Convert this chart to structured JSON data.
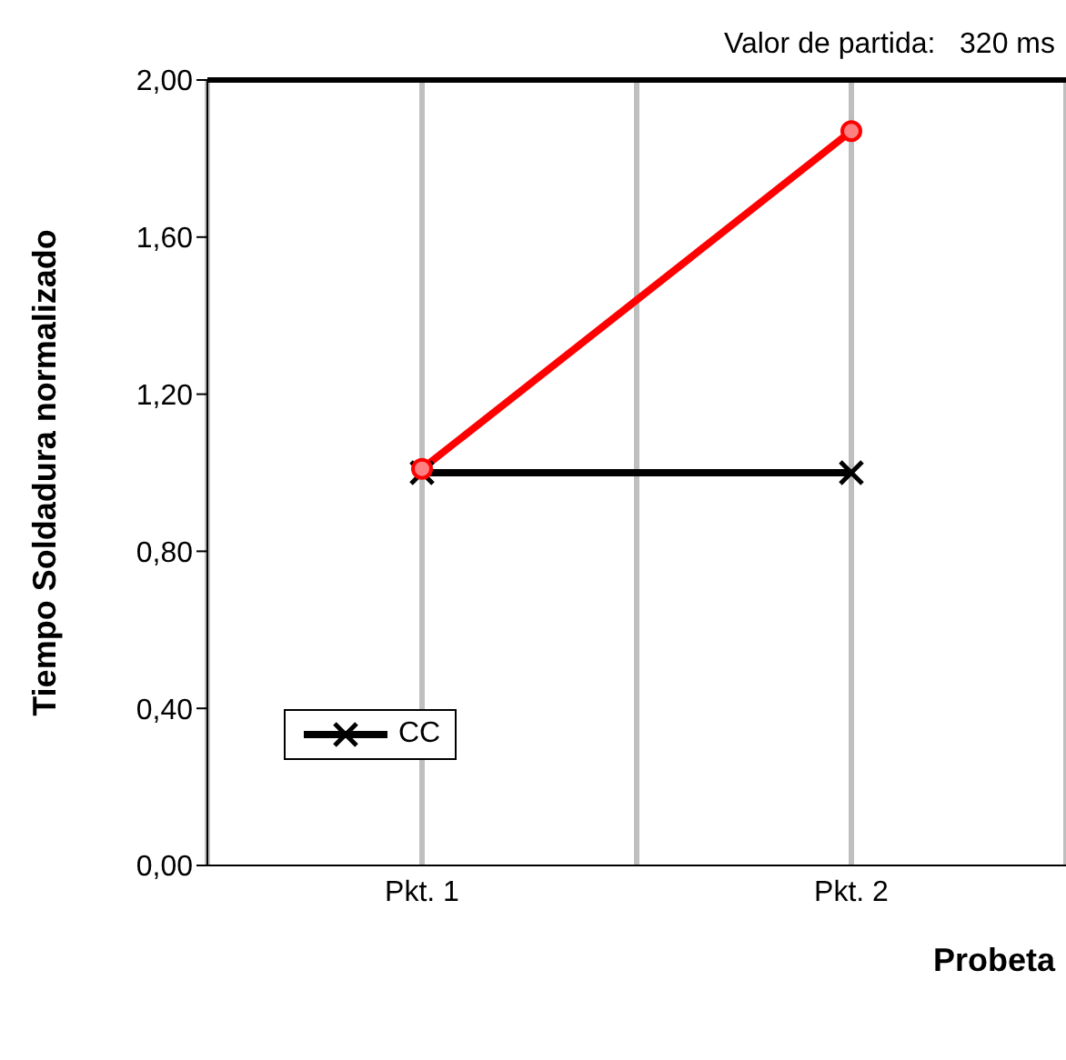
{
  "chart_data": {
    "type": "line",
    "xlabel": "Probeta",
    "ylabel": "Tiempo Soldadura normalizado",
    "categories": [
      "Pkt. 1",
      "Pkt. 2"
    ],
    "series": [
      {
        "name": "CC",
        "color": "#000000",
        "values": [
          1.0,
          1.0
        ],
        "marker": "cross"
      },
      {
        "color": "#ff0000",
        "values": [
          1.01,
          1.87
        ],
        "marker": "circle"
      }
    ],
    "ylim": [
      0,
      2
    ],
    "yticks": [
      {
        "value": 0,
        "label": "0,00"
      },
      {
        "value": 0.4,
        "label": "0,40"
      },
      {
        "value": 0.8,
        "label": "0,80"
      },
      {
        "value": 1.2,
        "label": "1,20"
      },
      {
        "value": 1.6,
        "label": "1,60"
      },
      {
        "value": 2,
        "label": "2,00"
      }
    ],
    "grid": "x",
    "legend": "bottom left",
    "ref_lines": [
      {
        "axis": "y",
        "value": 2,
        "color": "#000000"
      }
    ],
    "annotations": [
      "Valor de partida:   320 ms"
    ]
  }
}
